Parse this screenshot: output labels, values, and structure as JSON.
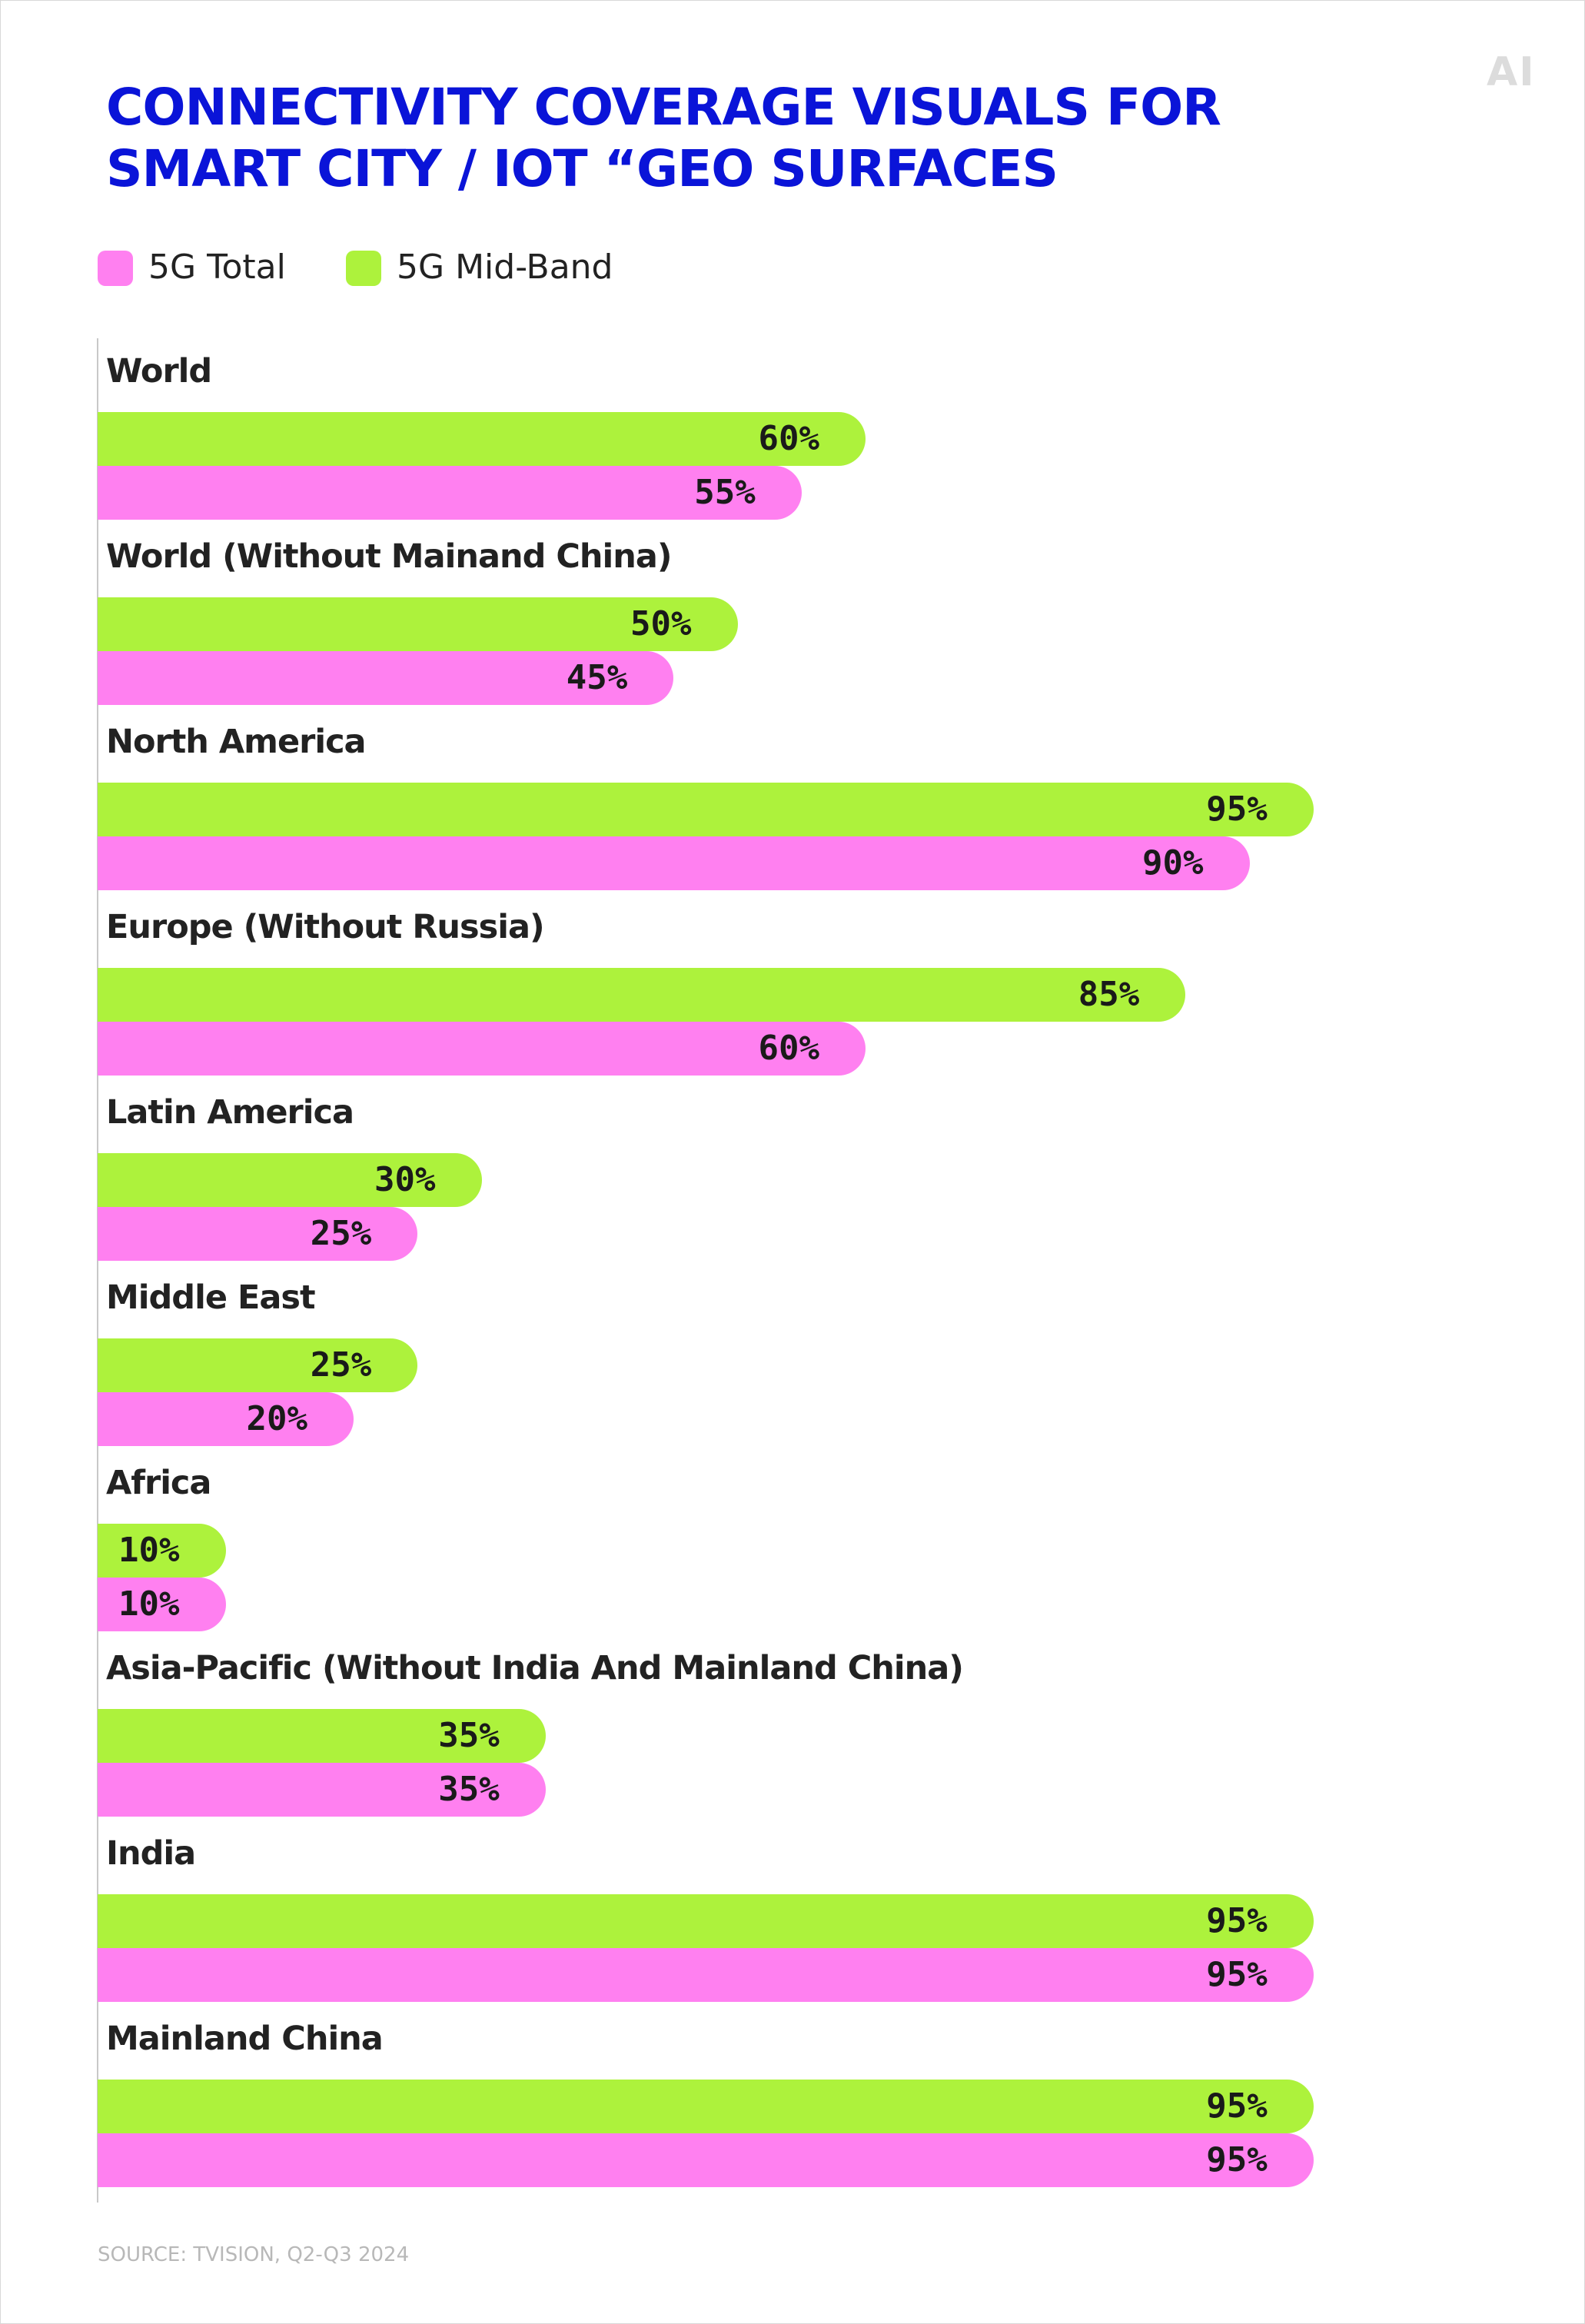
{
  "logo": "AI",
  "title_line1": "CONNECTIVITY COVERAGE VISUALS FOR",
  "title_line2": "SMART CITY / IOT “GEO SURFACES",
  "source": "SOURCE: TVISION, Q2-Q3 2024",
  "colors": {
    "total": "#ff80f0",
    "midband": "#adf23c",
    "title": "#0a14d8"
  },
  "chart_data": {
    "type": "bar",
    "orientation": "horizontal",
    "title": "CONNECTIVITY COVERAGE VISUALS FOR SMART CITY / IOT “GEO SURFACES",
    "xlim": [
      0,
      100
    ],
    "grid": false,
    "legend_placement": "top-left",
    "categories": [
      "World",
      "World (Without Mainand China)",
      "North America",
      "Europe (Without Russia)",
      "Latin America",
      "Middle East",
      "Africa",
      "Asia-Pacific (Without India And Mainland China)",
      "India",
      "Mainland China"
    ],
    "series": [
      {
        "name": "5G Total",
        "color": "#ff80f0",
        "values": [
          55,
          45,
          90,
          60,
          25,
          20,
          10,
          35,
          95,
          95
        ]
      },
      {
        "name": "5G Mid-Band",
        "color": "#adf23c",
        "values": [
          60,
          50,
          95,
          85,
          30,
          25,
          10,
          35,
          95,
          95
        ]
      }
    ]
  }
}
